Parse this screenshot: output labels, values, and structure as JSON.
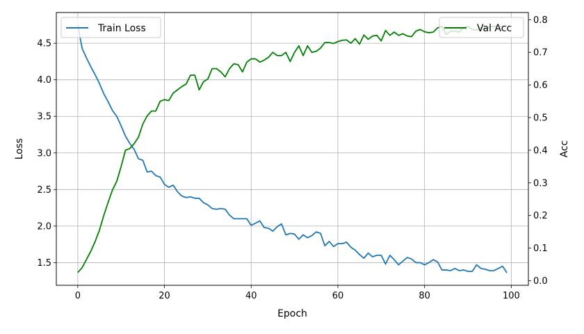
{
  "chart_data": {
    "type": "line",
    "xlabel": "Epoch",
    "ylabel_left": "Loss",
    "ylabel_right": "Acc",
    "x_ticks": [
      0,
      20,
      40,
      60,
      80,
      100
    ],
    "y_left_ticks": [
      1.5,
      2.0,
      2.5,
      3.0,
      3.5,
      4.0,
      4.5
    ],
    "y_right_ticks": [
      0.0,
      0.1,
      0.2,
      0.3,
      0.4,
      0.5,
      0.6,
      0.7,
      0.8
    ],
    "xlim": [
      -4.95,
      103.95
    ],
    "ylim_left": [
      1.19,
      4.92
    ],
    "ylim_right": [
      -0.014,
      0.822
    ],
    "grid": true,
    "legend_left_position": "upper-left",
    "legend_right_position": "upper-right",
    "series": [
      {
        "name": "Train Loss",
        "axis": "left",
        "color": "#1f77b4",
        "x": [
          0,
          1,
          2,
          3,
          4,
          5,
          6,
          7,
          8,
          9,
          10,
          11,
          12,
          13,
          14,
          15,
          16,
          17,
          18,
          19,
          20,
          21,
          22,
          23,
          24,
          25,
          26,
          27,
          28,
          29,
          30,
          31,
          32,
          33,
          34,
          35,
          36,
          37,
          38,
          39,
          40,
          41,
          42,
          43,
          44,
          45,
          46,
          47,
          48,
          49,
          50,
          51,
          52,
          53,
          54,
          55,
          56,
          57,
          58,
          59,
          60,
          61,
          62,
          63,
          64,
          65,
          66,
          67,
          68,
          69,
          70,
          71,
          72,
          73,
          74,
          75,
          76,
          77,
          78,
          79,
          80,
          81,
          82,
          83,
          84,
          85,
          86,
          87,
          88,
          89,
          90,
          91,
          92,
          93,
          94,
          95,
          96,
          97,
          98,
          99
        ],
        "y": [
          4.75,
          4.43,
          4.3,
          4.18,
          4.07,
          3.95,
          3.81,
          3.7,
          3.58,
          3.5,
          3.37,
          3.23,
          3.13,
          3.05,
          2.92,
          2.9,
          2.74,
          2.75,
          2.69,
          2.67,
          2.57,
          2.53,
          2.56,
          2.47,
          2.41,
          2.39,
          2.4,
          2.38,
          2.38,
          2.32,
          2.29,
          2.24,
          2.23,
          2.24,
          2.23,
          2.15,
          2.1,
          2.1,
          2.1,
          2.1,
          2.01,
          2.04,
          2.07,
          1.98,
          1.97,
          1.93,
          1.99,
          2.03,
          1.88,
          1.9,
          1.89,
          1.82,
          1.88,
          1.84,
          1.87,
          1.92,
          1.9,
          1.73,
          1.79,
          1.72,
          1.76,
          1.76,
          1.78,
          1.71,
          1.67,
          1.61,
          1.56,
          1.63,
          1.58,
          1.6,
          1.6,
          1.48,
          1.6,
          1.54,
          1.47,
          1.52,
          1.57,
          1.55,
          1.5,
          1.5,
          1.47,
          1.5,
          1.54,
          1.51,
          1.4,
          1.4,
          1.39,
          1.42,
          1.39,
          1.4,
          1.38,
          1.38,
          1.47,
          1.42,
          1.41,
          1.39,
          1.39,
          1.42,
          1.45,
          1.36
        ]
      },
      {
        "name": "Val Acc",
        "axis": "right",
        "color": "#008000",
        "x": [
          0,
          1,
          2,
          3,
          4,
          5,
          6,
          7,
          8,
          9,
          10,
          11,
          12,
          13,
          14,
          15,
          16,
          17,
          18,
          19,
          20,
          21,
          22,
          23,
          24,
          25,
          26,
          27,
          28,
          29,
          30,
          31,
          32,
          33,
          34,
          35,
          36,
          37,
          38,
          39,
          40,
          41,
          42,
          43,
          44,
          45,
          46,
          47,
          48,
          49,
          50,
          51,
          52,
          53,
          54,
          55,
          56,
          57,
          58,
          59,
          60,
          61,
          62,
          63,
          64,
          65,
          66,
          67,
          68,
          69,
          70,
          71,
          72,
          73,
          74,
          75,
          76,
          77,
          78,
          79,
          80,
          81,
          82,
          83,
          84,
          85,
          86,
          87,
          88,
          89,
          90,
          91,
          92,
          93,
          94,
          95,
          96,
          97,
          98,
          99
        ],
        "y": [
          0.025,
          0.04,
          0.065,
          0.09,
          0.12,
          0.155,
          0.2,
          0.24,
          0.278,
          0.305,
          0.35,
          0.4,
          0.405,
          0.42,
          0.44,
          0.48,
          0.505,
          0.52,
          0.52,
          0.55,
          0.555,
          0.552,
          0.575,
          0.585,
          0.595,
          0.603,
          0.63,
          0.63,
          0.585,
          0.61,
          0.618,
          0.65,
          0.65,
          0.64,
          0.625,
          0.65,
          0.665,
          0.662,
          0.64,
          0.67,
          0.68,
          0.68,
          0.67,
          0.676,
          0.685,
          0.7,
          0.69,
          0.69,
          0.7,
          0.672,
          0.7,
          0.72,
          0.69,
          0.72,
          0.7,
          0.703,
          0.713,
          0.73,
          0.73,
          0.727,
          0.733,
          0.737,
          0.738,
          0.728,
          0.742,
          0.725,
          0.753,
          0.74,
          0.75,
          0.752,
          0.735,
          0.767,
          0.752,
          0.762,
          0.752,
          0.757,
          0.75,
          0.748,
          0.765,
          0.77,
          0.763,
          0.76,
          0.762,
          0.775,
          0.78,
          0.755,
          0.765,
          0.765,
          0.762,
          0.775,
          0.78,
          0.77,
          0.768,
          0.775,
          0.772,
          0.778,
          0.78,
          0.778,
          0.78,
          0.782
        ]
      }
    ]
  }
}
